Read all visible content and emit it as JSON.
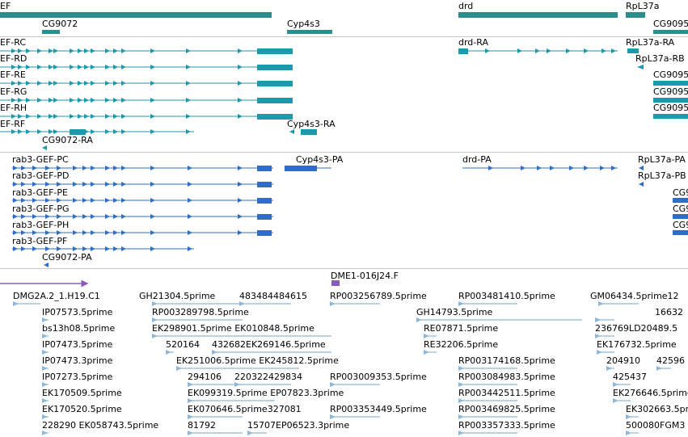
{
  "colors": {
    "teal": "#1c9aab",
    "blue": "#2f6ec4",
    "purple": "#8a5bbd",
    "est": "#8fb8d8",
    "gene_bar": "#2a8e8e"
  },
  "tracks": [
    {
      "name": "genes",
      "labels": [
        {
          "id": "g0",
          "text": "EF"
        },
        {
          "id": "g1",
          "text": "CG9072"
        },
        {
          "id": "g2",
          "text": "Cyp4s3"
        },
        {
          "id": "g3",
          "text": "drd"
        },
        {
          "id": "g4",
          "text": "RpL37a"
        },
        {
          "id": "g5",
          "text": "CG9095"
        }
      ]
    },
    {
      "name": "transcripts",
      "labels": [
        {
          "id": "t0",
          "text": "EF-RC"
        },
        {
          "id": "t1",
          "text": "EF-RD"
        },
        {
          "id": "t2",
          "text": "EF-RE"
        },
        {
          "id": "t3",
          "text": "EF-RG"
        },
        {
          "id": "t4",
          "text": "EF-RH"
        },
        {
          "id": "t5",
          "text": "EF-RF"
        },
        {
          "id": "t6",
          "text": "CG9072-RA"
        },
        {
          "id": "t7",
          "text": "Cyp4s3-RA"
        },
        {
          "id": "t8",
          "text": "drd-RA"
        },
        {
          "id": "t9",
          "text": "RpL37a-RA"
        },
        {
          "id": "t10",
          "text": "RpL37a-RB"
        },
        {
          "id": "t11",
          "text": "CG9095"
        },
        {
          "id": "t12",
          "text": "CG9095"
        },
        {
          "id": "t13",
          "text": "CG9095"
        }
      ]
    },
    {
      "name": "proteins",
      "labels": [
        {
          "id": "p0",
          "text": "rab3-GEF-PC"
        },
        {
          "id": "p1",
          "text": "rab3-GEF-PD"
        },
        {
          "id": "p2",
          "text": "rab3-GEF-PE"
        },
        {
          "id": "p3",
          "text": "rab3-GEF-PG"
        },
        {
          "id": "p4",
          "text": "rab3-GEF-PH"
        },
        {
          "id": "p5",
          "text": "rab3-GEF-PF"
        },
        {
          "id": "p6",
          "text": "CG9072-PA"
        },
        {
          "id": "p7",
          "text": "Cyp4s3-PA"
        },
        {
          "id": "p8",
          "text": "drd-PA"
        },
        {
          "id": "p9",
          "text": "RpL37a-PA"
        },
        {
          "id": "p10",
          "text": "RpL37a-PB"
        },
        {
          "id": "p11",
          "text": "CG9"
        },
        {
          "id": "p12",
          "text": "CG9"
        },
        {
          "id": "p13",
          "text": "CG9"
        }
      ]
    },
    {
      "name": "clones_ests",
      "labels": [
        {
          "id": "e0",
          "text": "DME1-016J24.F"
        },
        {
          "id": "e1",
          "text": "DMG2A.2_1.H19.C1"
        },
        {
          "id": "e2",
          "text": "GH21304.5prime"
        },
        {
          "id": "e3",
          "text": "483484484615"
        },
        {
          "id": "e4",
          "text": "RP003256789.5prime"
        },
        {
          "id": "e5",
          "text": "RP003481410.5prime"
        },
        {
          "id": "e6",
          "text": "GM06434.5prime12"
        },
        {
          "id": "e7",
          "text": "IP07573.5prime"
        },
        {
          "id": "e8",
          "text": "RP003289798.5prime"
        },
        {
          "id": "e9",
          "text": "GH14793.5prime"
        },
        {
          "id": "e10",
          "text": "16632"
        },
        {
          "id": "e11",
          "text": "bs13h08.5prime"
        },
        {
          "id": "e12",
          "text": "EK298901.5prime EK010848.5prime"
        },
        {
          "id": "e13",
          "text": "RE07871.5prime"
        },
        {
          "id": "e14",
          "text": "236769LD20489.5"
        },
        {
          "id": "e15",
          "text": "IP07473.5prime"
        },
        {
          "id": "e16",
          "text": "520164"
        },
        {
          "id": "e17",
          "text": "432682EK269146.5prime"
        },
        {
          "id": "e18",
          "text": "RE32206.5prime"
        },
        {
          "id": "e19",
          "text": "EK176732.5prime"
        },
        {
          "id": "e20",
          "text": "IP07473.3prime"
        },
        {
          "id": "e21",
          "text": "EK251006.5prime EK245812.5prime"
        },
        {
          "id": "e22",
          "text": "RP003174168.5prime"
        },
        {
          "id": "e23",
          "text": "204910"
        },
        {
          "id": "e24",
          "text": "42596"
        },
        {
          "id": "e25",
          "text": "IP07273.5prime"
        },
        {
          "id": "e26",
          "text": "294106"
        },
        {
          "id": "e27",
          "text": "220322429834"
        },
        {
          "id": "e28",
          "text": "RP003009353.5prime"
        },
        {
          "id": "e29",
          "text": "RP003084983.5prime"
        },
        {
          "id": "e30",
          "text": "425437"
        },
        {
          "id": "e31",
          "text": "EK170509.5prime"
        },
        {
          "id": "e32",
          "text": "EK099319.5prime EP07823.3prime"
        },
        {
          "id": "e33",
          "text": "RP003442511.5prime"
        },
        {
          "id": "e34",
          "text": "EK276646.5prime"
        },
        {
          "id": "e35",
          "text": "EK170520.5prime"
        },
        {
          "id": "e36",
          "text": "EK070646.5prime327081"
        },
        {
          "id": "e37",
          "text": "RP003353449.5prime"
        },
        {
          "id": "e38",
          "text": "RP003469825.5prime"
        },
        {
          "id": "e39",
          "text": "EK302663.5prime"
        },
        {
          "id": "e40",
          "text": "228290 EK058743.5prime"
        },
        {
          "id": "e41",
          "text": "81792"
        },
        {
          "id": "e42",
          "text": "15707EP06523.3prime"
        },
        {
          "id": "e43",
          "text": "RP003357333.5prime"
        },
        {
          "id": "e44",
          "text": "500080FGM3"
        }
      ]
    }
  ]
}
